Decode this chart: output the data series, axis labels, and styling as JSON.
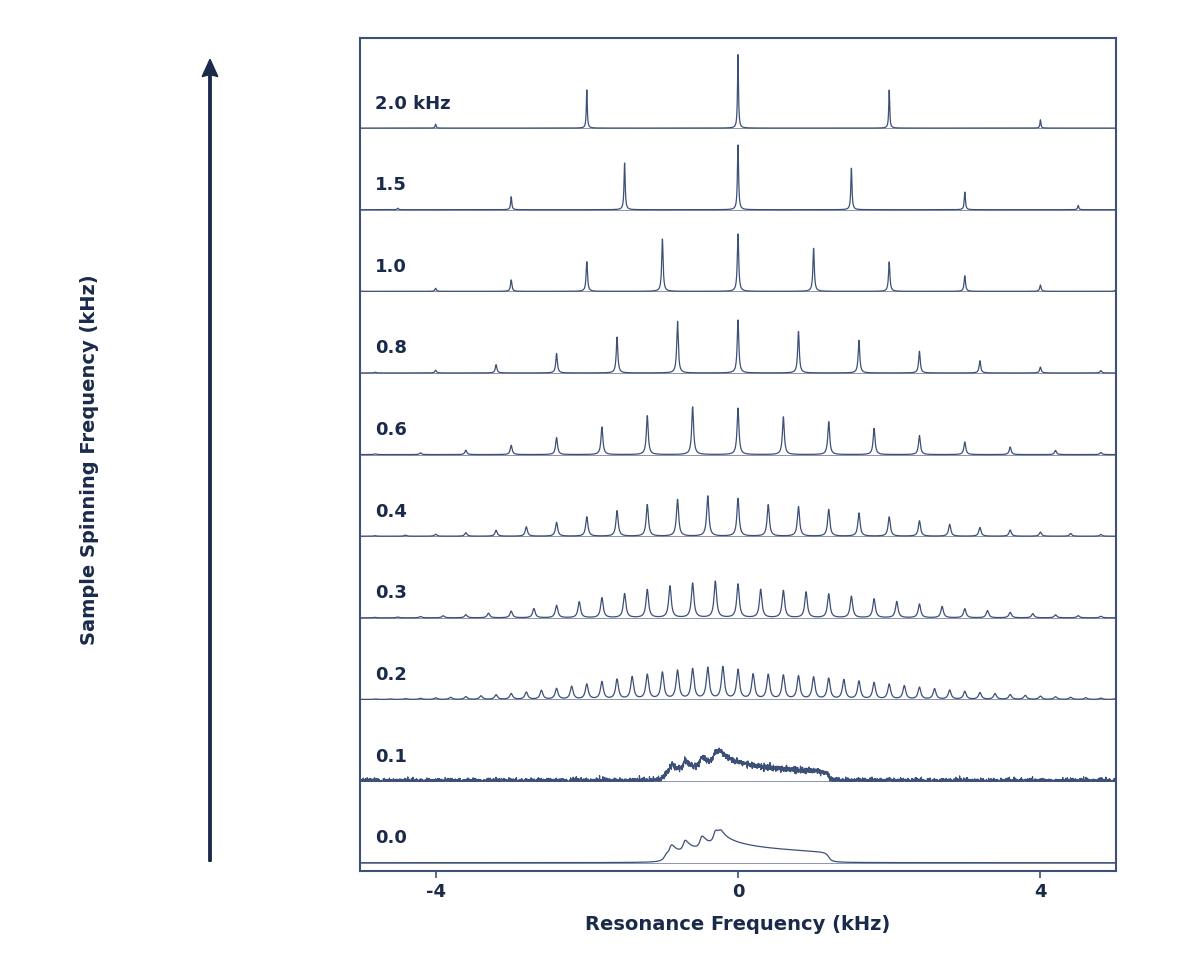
{
  "spinning_freqs": [
    0.0,
    0.1,
    0.2,
    0.3,
    0.4,
    0.6,
    0.8,
    1.0,
    1.5,
    2.0
  ],
  "freq_labels": [
    "0.0",
    "0.1",
    "0.2",
    "0.3",
    "0.4",
    "0.6",
    "0.8",
    "1.0",
    "1.5",
    "2.0 kHz"
  ],
  "x_min": -5.0,
  "x_max": 5.0,
  "xlabel": "Resonance Frequency (kHz)",
  "ylabel": "Sample Spinning Frequency (kHz)",
  "line_color": "#3d5078",
  "background_color": "#ffffff",
  "box_color": "#3d5078",
  "text_color": "#1a2a4a",
  "x_ticks": [
    -4,
    0,
    4
  ],
  "label_fontsize": 14,
  "tick_fontsize": 13,
  "freq_label_fontsize": 13,
  "peak_heights": [
    0.45,
    0.45,
    0.45,
    0.5,
    0.55,
    0.65,
    0.72,
    0.78,
    0.88,
    1.0
  ],
  "csa_sigma": 1.8,
  "noise_amplitude": 0.08
}
